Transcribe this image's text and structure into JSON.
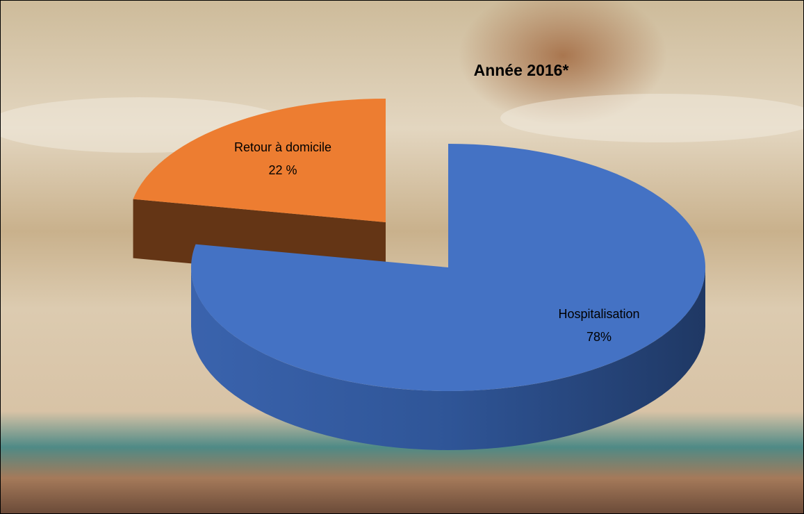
{
  "chart_data": {
    "type": "pie",
    "title": "Année 2016*",
    "categories": [
      "Hospitalisation",
      "Retour à domicile"
    ],
    "values": [
      78,
      22
    ],
    "value_labels": [
      "78%",
      "22 %"
    ],
    "colors": [
      "#4472c4",
      "#ed7d31"
    ]
  }
}
